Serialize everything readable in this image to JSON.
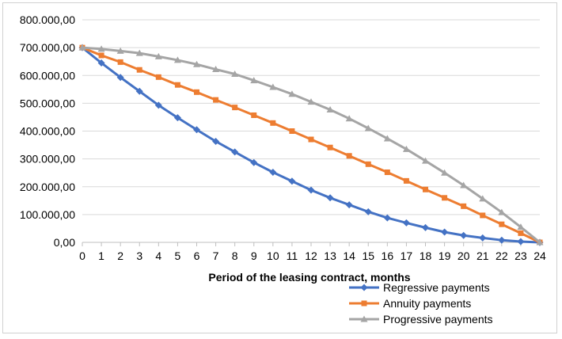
{
  "chart_data": {
    "type": "line",
    "xlabel": "Period of the leasing contract, months",
    "ylabel": "",
    "x": [
      0,
      1,
      2,
      3,
      4,
      5,
      6,
      7,
      8,
      9,
      10,
      11,
      12,
      13,
      14,
      15,
      16,
      17,
      18,
      19,
      20,
      21,
      22,
      23,
      24
    ],
    "ylim": [
      0,
      800000
    ],
    "y_ticks": [
      "0,00",
      "100.000,00",
      "200.000,00",
      "300.000,00",
      "400.000,00",
      "500.000,00",
      "600.000,00",
      "700.000,00",
      "800.000,00"
    ],
    "x_ticks": [
      "0",
      "1",
      "2",
      "3",
      "4",
      "5",
      "6",
      "7",
      "8",
      "9",
      "10",
      "11",
      "12",
      "13",
      "14",
      "15",
      "16",
      "17",
      "18",
      "19",
      "20",
      "21",
      "22",
      "23",
      "24"
    ],
    "grid": true,
    "legend_position": "bottom-right",
    "series": [
      {
        "name": "Regressive payments",
        "color": "#4472c4",
        "marker": "diamond",
        "values": [
          700000,
          645000,
          593000,
          543000,
          493000,
          448000,
          405000,
          363000,
          325000,
          287000,
          252000,
          220000,
          188000,
          160000,
          135000,
          110000,
          88000,
          70000,
          53000,
          37000,
          25000,
          16000,
          8000,
          3000,
          0
        ]
      },
      {
        "name": "Annuity payments",
        "color": "#ed7d31",
        "marker": "square",
        "values": [
          700000,
          672000,
          648000,
          620000,
          594000,
          566000,
          540000,
          512000,
          485000,
          457000,
          429000,
          400000,
          370000,
          341000,
          311000,
          281000,
          252000,
          221000,
          190000,
          160000,
          130000,
          97000,
          65000,
          33000,
          0
        ]
      },
      {
        "name": "Progressive payments",
        "color": "#a5a5a5",
        "marker": "triangle",
        "values": [
          700000,
          695000,
          688000,
          680000,
          668000,
          655000,
          640000,
          622000,
          605000,
          582000,
          558000,
          533000,
          505000,
          477000,
          445000,
          410000,
          373000,
          335000,
          293000,
          250000,
          205000,
          157000,
          108000,
          55000,
          0
        ]
      }
    ]
  }
}
